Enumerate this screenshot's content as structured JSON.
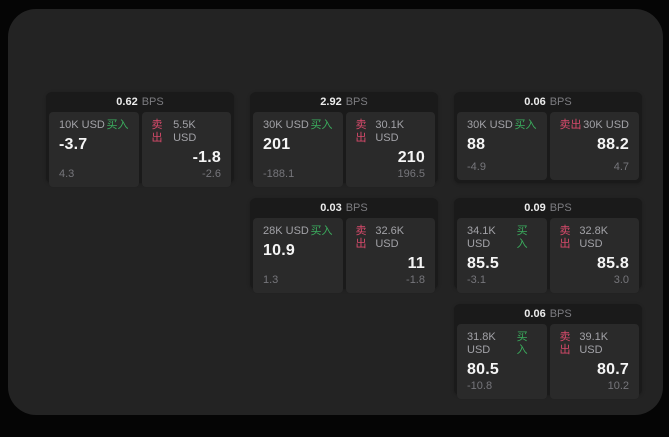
{
  "labels": {
    "bps_unit": "BPS",
    "buy": "买入",
    "sell": "卖出"
  },
  "colors": {
    "outer_background": "#050505",
    "surface": "#232323",
    "card": "#1a1a1a",
    "pane": "#2a2a2a",
    "buy_accent": "#3bae5e",
    "sell_accent": "#d84a6b",
    "value_text": "#f5f5f5",
    "muted_text": "#76767b"
  },
  "cards": [
    {
      "bps": "0.62",
      "buy": {
        "amount": "10K USD",
        "value": "-3.7",
        "sub": "4.3"
      },
      "sell": {
        "amount": "5.5K USD",
        "value": "-1.8",
        "sub": "-2.6"
      }
    },
    {
      "bps": "2.92",
      "buy": {
        "amount": "30K USD",
        "value": "201",
        "sub": "-188.1"
      },
      "sell": {
        "amount": "30.1K USD",
        "value": "210",
        "sub": "196.5"
      }
    },
    {
      "bps": "0.06",
      "buy": {
        "amount": "30K USD",
        "value": "88",
        "sub": "-4.9"
      },
      "sell": {
        "amount": "30K USD",
        "value": "88.2",
        "sub": "4.7"
      }
    },
    {
      "bps": "0.03",
      "buy": {
        "amount": "28K USD",
        "value": "10.9",
        "sub": "1.3"
      },
      "sell": {
        "amount": "32.6K USD",
        "value": "11",
        "sub": "-1.8"
      }
    },
    {
      "bps": "0.09",
      "buy": {
        "amount": "34.1K USD",
        "value": "85.5",
        "sub": "-3.1"
      },
      "sell": {
        "amount": "32.8K USD",
        "value": "85.8",
        "sub": "3.0"
      }
    },
    {
      "bps": "0.06",
      "buy": {
        "amount": "31.8K USD",
        "value": "80.5",
        "sub": "-10.8"
      },
      "sell": {
        "amount": "39.1K USD",
        "value": "80.7",
        "sub": "10.2"
      }
    }
  ]
}
